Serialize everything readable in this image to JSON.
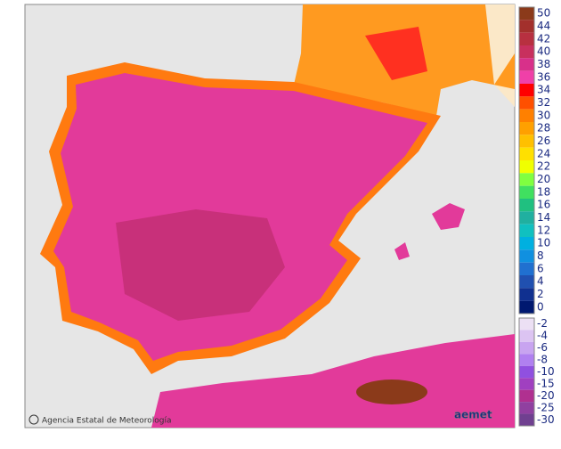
{
  "attribution": "Agencia Estatal de Meteorología",
  "logo": "aemet",
  "legend": {
    "upper": [
      {
        "label": 50,
        "color": "#8b3a1a"
      },
      {
        "label": 44,
        "color": "#a3302c"
      },
      {
        "label": 42,
        "color": "#b83040"
      },
      {
        "label": 40,
        "color": "#c8305e"
      },
      {
        "label": 38,
        "color": "#d8308a"
      },
      {
        "label": 36,
        "color": "#f040a8"
      },
      {
        "label": 34,
        "color": "#ff0000"
      },
      {
        "label": 32,
        "color": "#ff5000"
      },
      {
        "label": 30,
        "color": "#ff8000"
      },
      {
        "label": 28,
        "color": "#ffa000"
      },
      {
        "label": 26,
        "color": "#ffc000"
      },
      {
        "label": 24,
        "color": "#ffe000"
      },
      {
        "label": 22,
        "color": "#f0ff00"
      },
      {
        "label": 20,
        "color": "#80ff40"
      },
      {
        "label": 18,
        "color": "#40e060"
      },
      {
        "label": 16,
        "color": "#20c080"
      },
      {
        "label": 14,
        "color": "#20b0a0"
      },
      {
        "label": 12,
        "color": "#10c0c0"
      },
      {
        "label": 10,
        "color": "#00b0e0"
      },
      {
        "label": 8,
        "color": "#1090e0"
      },
      {
        "label": 6,
        "color": "#2070d0"
      },
      {
        "label": 4,
        "color": "#2050b0"
      },
      {
        "label": 2,
        "color": "#103090"
      },
      {
        "label": 0,
        "color": "#001870"
      }
    ],
    "lower": [
      {
        "label": -2,
        "color": "#ece0f4"
      },
      {
        "label": -4,
        "color": "#dcc4f2"
      },
      {
        "label": -6,
        "color": "#c8a4f0"
      },
      {
        "label": -8,
        "color": "#b080f0"
      },
      {
        "label": -10,
        "color": "#9050e0"
      },
      {
        "label": -15,
        "color": "#a040c0"
      },
      {
        "label": -20,
        "color": "#b03090"
      },
      {
        "label": -25,
        "color": "#9040a0"
      },
      {
        "label": -30,
        "color": "#704090"
      }
    ]
  }
}
